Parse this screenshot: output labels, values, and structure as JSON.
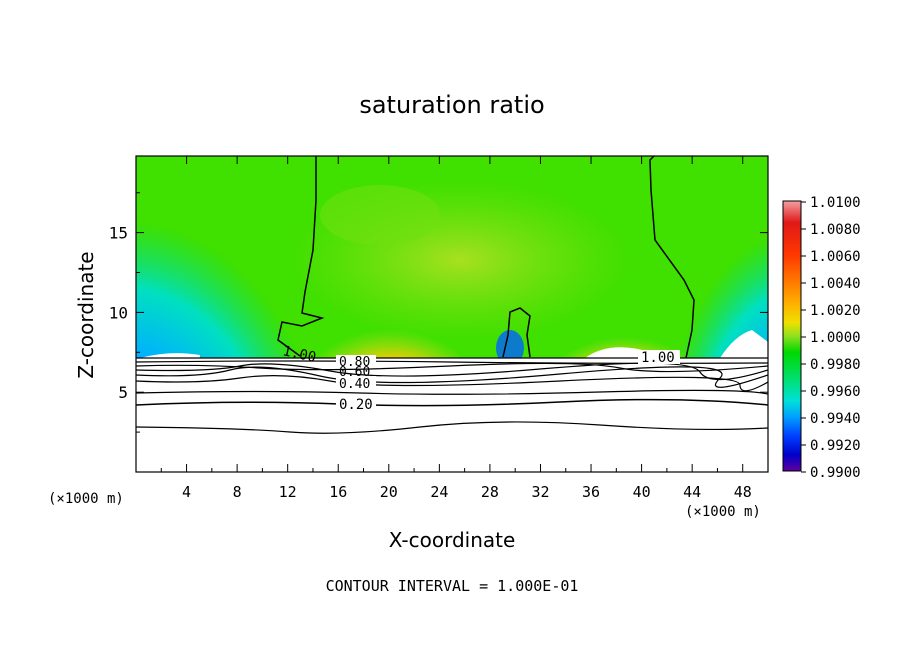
{
  "chart_data": {
    "type": "heatmap",
    "title": "saturation ratio",
    "xlabel": "X-coordinate",
    "ylabel": "Z-coordinate",
    "x_unit_left": "(×1000 m)",
    "x_unit_right": "(×1000 m)",
    "footer": "CONTOUR INTERVAL = 1.000E-01",
    "xlim": [
      0,
      50
    ],
    "ylim": [
      0,
      19.8
    ],
    "x_ticks": [
      "4",
      "8",
      "12",
      "16",
      "20",
      "24",
      "28",
      "32",
      "36",
      "40",
      "44",
      "48"
    ],
    "y_ticks": [
      "5",
      "10",
      "15"
    ],
    "colorbar": {
      "min": 0.99,
      "max": 1.01,
      "labels": [
        "1.0100",
        "1.0080",
        "1.0060",
        "1.0040",
        "1.0020",
        "1.0000",
        "0.9980",
        "0.9960",
        "0.9940",
        "0.9920",
        "0.9900"
      ],
      "colors": [
        "#f4a0a0",
        "#e01818",
        "#ff3800",
        "#ff7a00",
        "#ffb000",
        "#f0e000",
        "#90e020",
        "#00d800",
        "#00e070",
        "#00e0d8",
        "#00a0ff",
        "#0040ff",
        "#0000c8",
        "#6000a0"
      ]
    },
    "contour_labels": [
      "1.00",
      "0.80",
      "0.60",
      "0.40",
      "0.20",
      "1.00"
    ],
    "contour_levels": [
      0.2,
      0.4,
      0.6,
      0.8,
      1.0
    ]
  }
}
